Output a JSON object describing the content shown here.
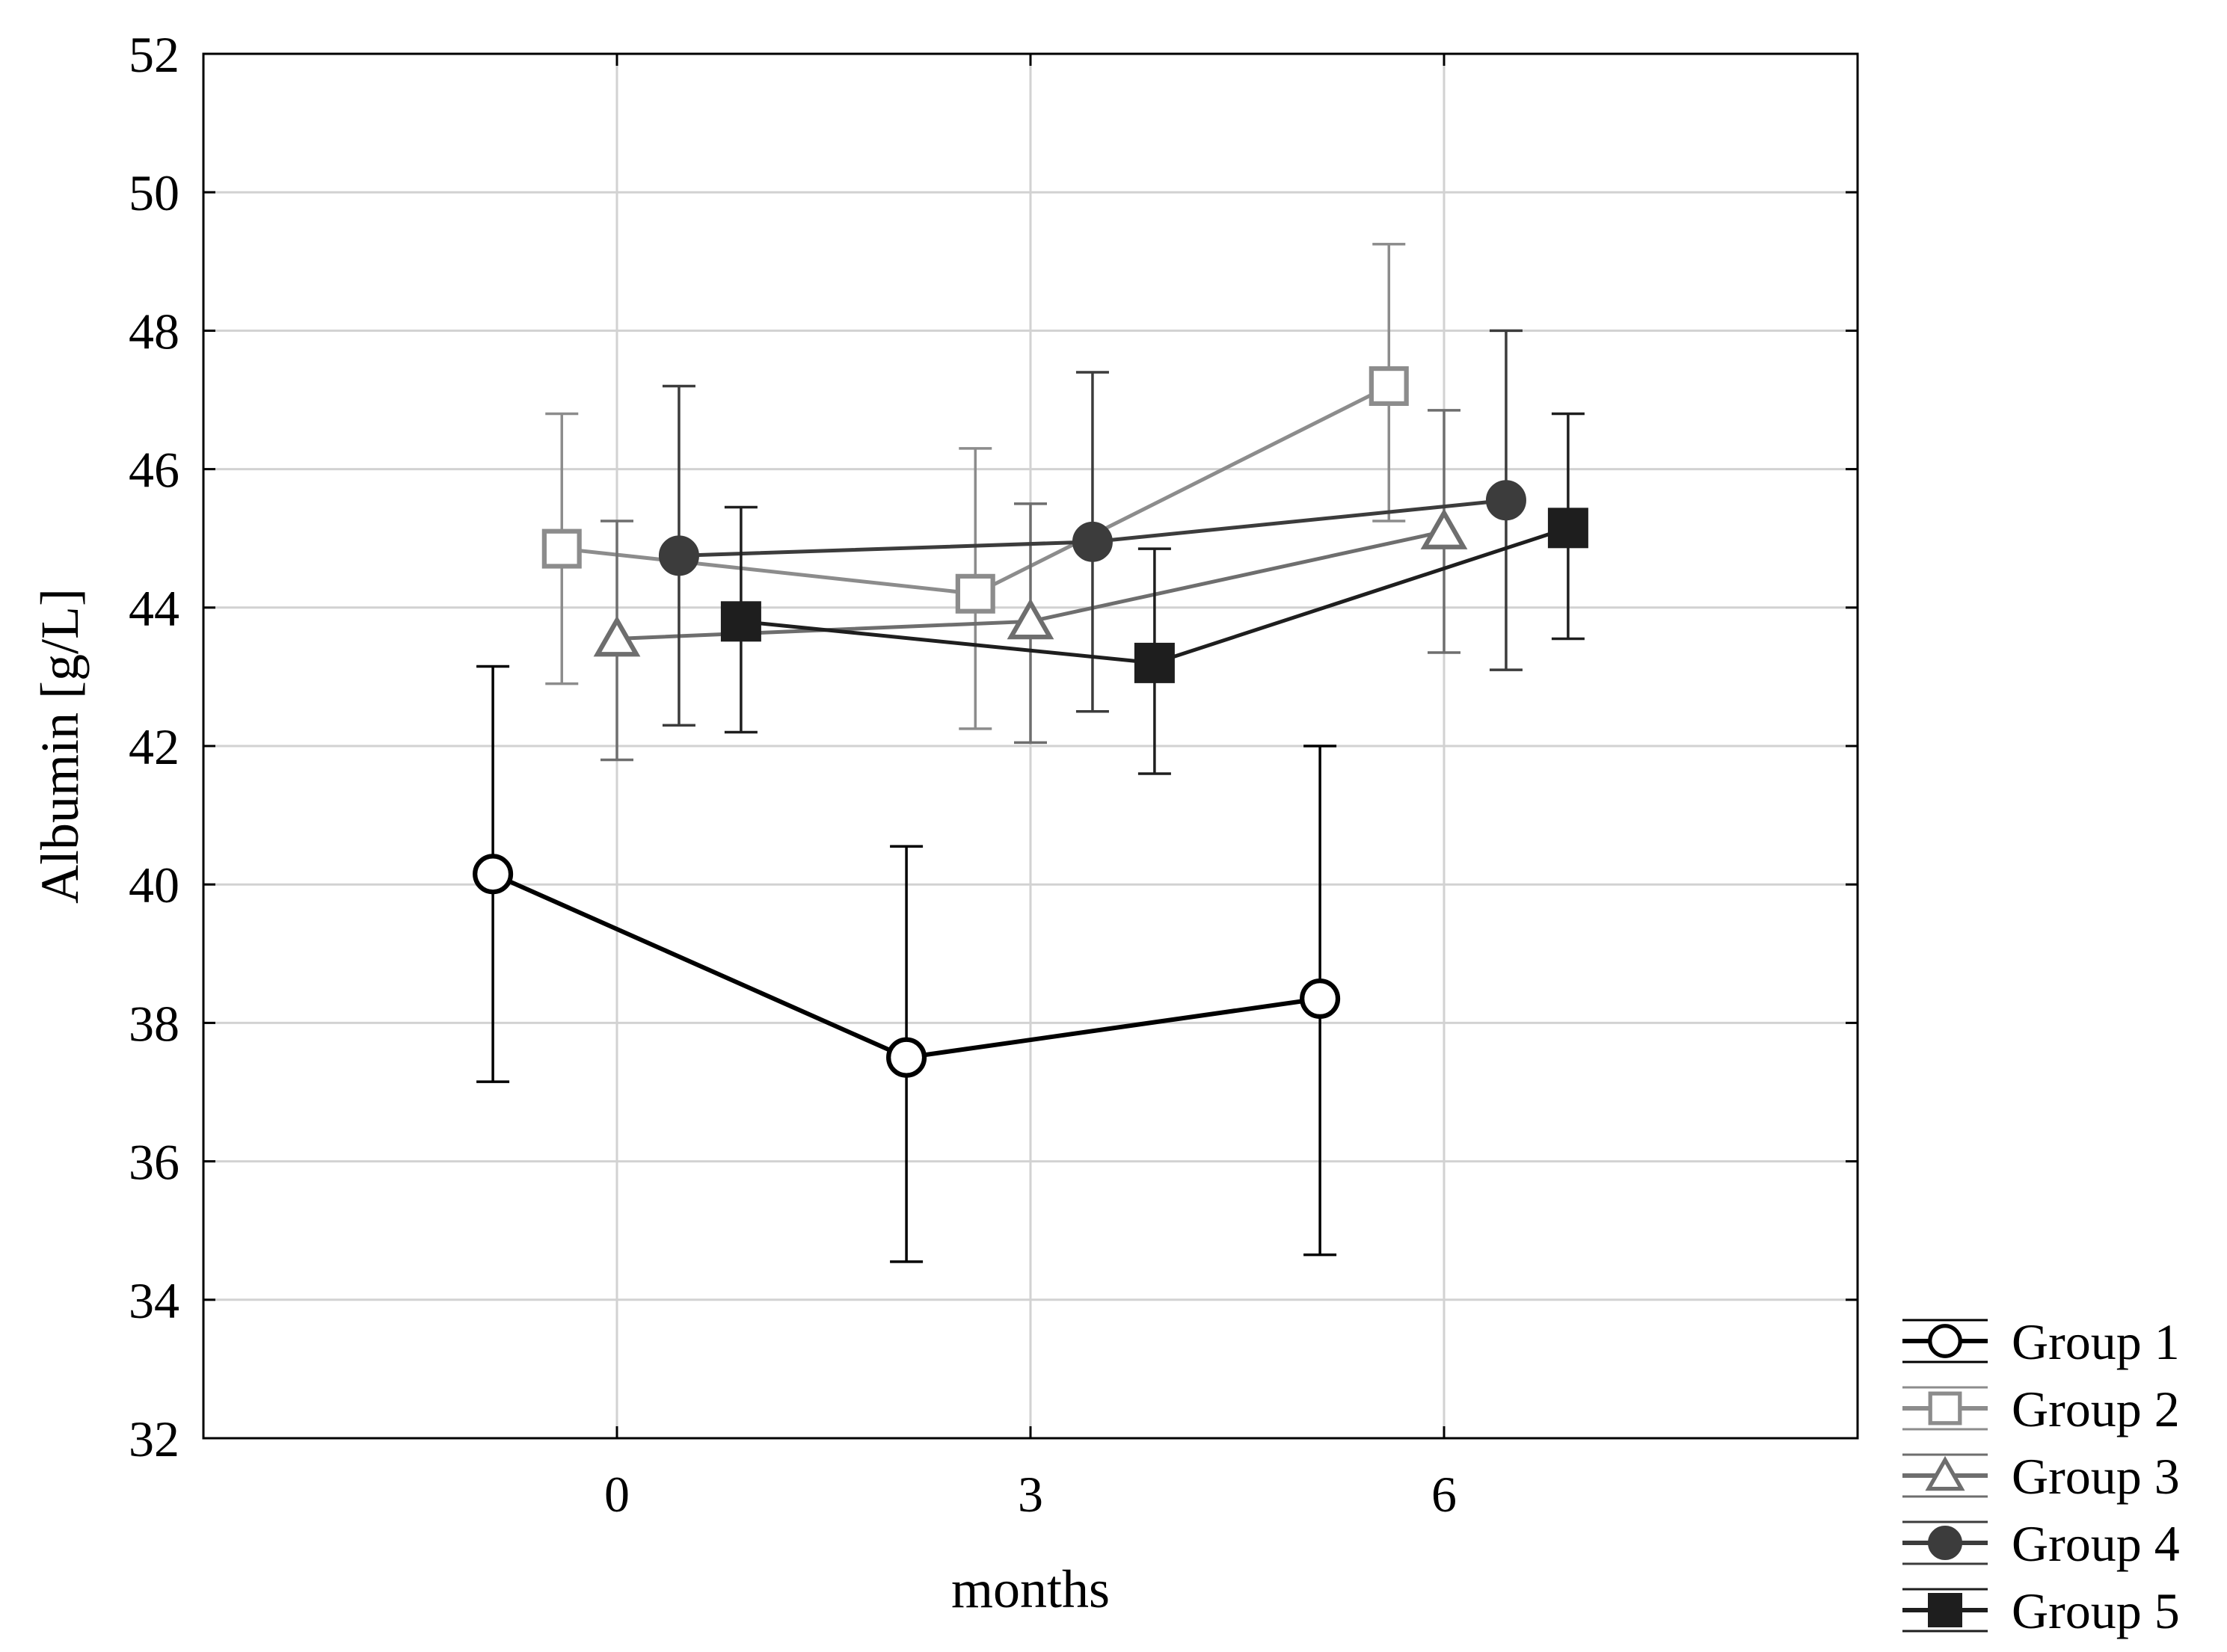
{
  "chart_data": {
    "type": "line",
    "xlabel": "months",
    "ylabel": "Albumin [g/L]",
    "ylim": [
      32,
      52
    ],
    "yticks": [
      32,
      34,
      36,
      38,
      40,
      42,
      44,
      46,
      48,
      50,
      52
    ],
    "ytick_labels": [
      "32",
      "34",
      "36",
      "38",
      "40",
      "42",
      "44",
      "46",
      "48",
      "50",
      "52"
    ],
    "xlim": [
      -3,
      9
    ],
    "xticks": [
      0,
      3,
      6
    ],
    "xtick_labels": [
      "0",
      "3",
      "6"
    ],
    "grid": true,
    "legend_position": "bottom-right, outside plot",
    "error_bars": "vertical whiskers",
    "series": [
      {
        "name": "Group 1",
        "marker": "circle-open",
        "color": "#000000",
        "x": [
          -0.9,
          2.1,
          5.1
        ],
        "y": [
          40.15,
          37.5,
          38.35
        ],
        "err_low": [
          37.15,
          34.55,
          34.65
        ],
        "err_high": [
          43.15,
          40.55,
          42.0
        ]
      },
      {
        "name": "Group 2",
        "marker": "square-open",
        "color": "#8c8c8c",
        "x": [
          -0.4,
          2.6,
          5.6
        ],
        "y": [
          44.85,
          44.2,
          47.2
        ],
        "err_low": [
          42.9,
          42.25,
          45.25
        ],
        "err_high": [
          46.8,
          46.3,
          49.25
        ]
      },
      {
        "name": "Group 3",
        "marker": "triangle-open",
        "color": "#6e6e6e",
        "x": [
          0.0,
          3.0,
          6.0
        ],
        "y": [
          43.55,
          43.8,
          45.1
        ],
        "err_low": [
          41.8,
          42.05,
          43.35
        ],
        "err_high": [
          45.25,
          45.5,
          46.85
        ]
      },
      {
        "name": "Group 4",
        "marker": "circle-filled",
        "color": "#3c3c3c",
        "x": [
          0.45,
          3.45,
          6.45
        ],
        "y": [
          44.75,
          44.95,
          45.55
        ],
        "err_low": [
          42.3,
          42.5,
          43.1
        ],
        "err_high": [
          47.2,
          47.4,
          48.0
        ]
      },
      {
        "name": "Group 5",
        "marker": "square-filled",
        "color": "#1e1e1e",
        "x": [
          0.9,
          3.9,
          6.9
        ],
        "y": [
          43.8,
          43.2,
          45.15
        ],
        "err_low": [
          42.2,
          41.6,
          43.55
        ],
        "err_high": [
          45.45,
          44.85,
          46.8
        ]
      }
    ]
  }
}
